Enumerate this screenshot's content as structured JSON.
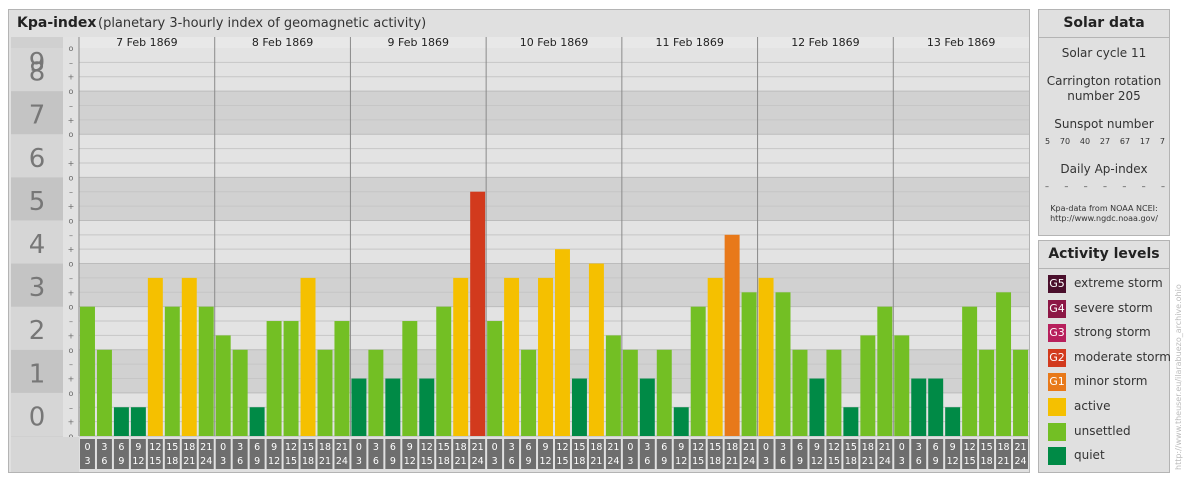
{
  "header": {
    "title": "Kpa-index",
    "subtitle": "(planetary 3-hourly index of geomagnetic activity)"
  },
  "solar_panel": {
    "title": "Solar data",
    "cycle": "Solar cycle 11",
    "carrington_line1": "Carrington rotation",
    "carrington_line2": "number 205",
    "sunspot_title": "Sunspot number",
    "sunspots": [
      "5",
      "70",
      "40",
      "27",
      "67",
      "17",
      "7"
    ],
    "daily_ap_title": "Daily Ap-index",
    "daily_ap": [
      "–",
      "–",
      "–",
      "–",
      "–",
      "–",
      "–"
    ],
    "note_line1": "Kpa-data from NOAA NCEI:",
    "note_line2": "http://www.ngdc.noaa.gov/"
  },
  "legend": {
    "title": "Activity levels",
    "items": [
      {
        "code": "G5",
        "label": "extreme storm",
        "color": "#4a0f2c"
      },
      {
        "code": "G4",
        "label": "severe storm",
        "color": "#8c1745"
      },
      {
        "code": "G3",
        "label": "strong storm",
        "color": "#b71f5c"
      },
      {
        "code": "G2",
        "label": "moderate storm",
        "color": "#d23a1d"
      },
      {
        "code": "G1",
        "label": "minor storm",
        "color": "#e8791a"
      },
      {
        "code": "",
        "label": "active",
        "color": "#f5c000"
      },
      {
        "code": "",
        "label": "unsettled",
        "color": "#73bf24"
      },
      {
        "code": "",
        "label": "quiet",
        "color": "#008a46"
      }
    ]
  },
  "watermark": "http://www.theuser.eu/ilarabuezo_archive.ohio",
  "chart_data": {
    "type": "bar",
    "ylim": [
      0,
      9
    ],
    "y_ticks": [
      "0",
      "1",
      "2",
      "3",
      "4",
      "5",
      "6",
      "7",
      "8",
      "9"
    ],
    "minor_tick_labels": [
      "–",
      "o",
      "+"
    ],
    "days": [
      "7 Feb 1869",
      "8 Feb 1869",
      "9 Feb 1869",
      "10 Feb 1869",
      "11 Feb 1869",
      "12 Feb 1869",
      "13 Feb 1869"
    ],
    "interval_start": [
      "0",
      "3",
      "6",
      "9",
      "12",
      "15",
      "18",
      "21"
    ],
    "interval_end": [
      "3",
      "6",
      "9",
      "12",
      "15",
      "18",
      "21",
      "24"
    ],
    "values": [
      [
        3.0,
        2.0,
        0.667,
        0.667,
        3.667,
        3.0,
        3.667,
        3.0
      ],
      [
        2.333,
        2.0,
        0.667,
        2.667,
        2.667,
        3.667,
        2.0,
        2.667
      ],
      [
        1.333,
        2.0,
        1.333,
        2.667,
        1.333,
        3.0,
        3.667,
        5.667
      ],
      [
        2.667,
        3.667,
        2.0,
        3.667,
        4.333,
        1.333,
        4.0,
        2.333
      ],
      [
        2.0,
        1.333,
        2.0,
        0.667,
        3.0,
        3.667,
        4.667,
        3.333
      ],
      [
        3.667,
        3.333,
        2.0,
        1.333,
        2.0,
        0.667,
        2.333,
        3.0
      ],
      [
        2.333,
        1.333,
        1.333,
        0.667,
        3.0,
        2.0,
        3.333,
        2.0
      ]
    ],
    "level_colors": {
      "quiet": "#008a46",
      "unsettled": "#73bf24",
      "active": "#f5c000",
      "G1": "#e8791a",
      "G2": "#d23a1d"
    }
  }
}
